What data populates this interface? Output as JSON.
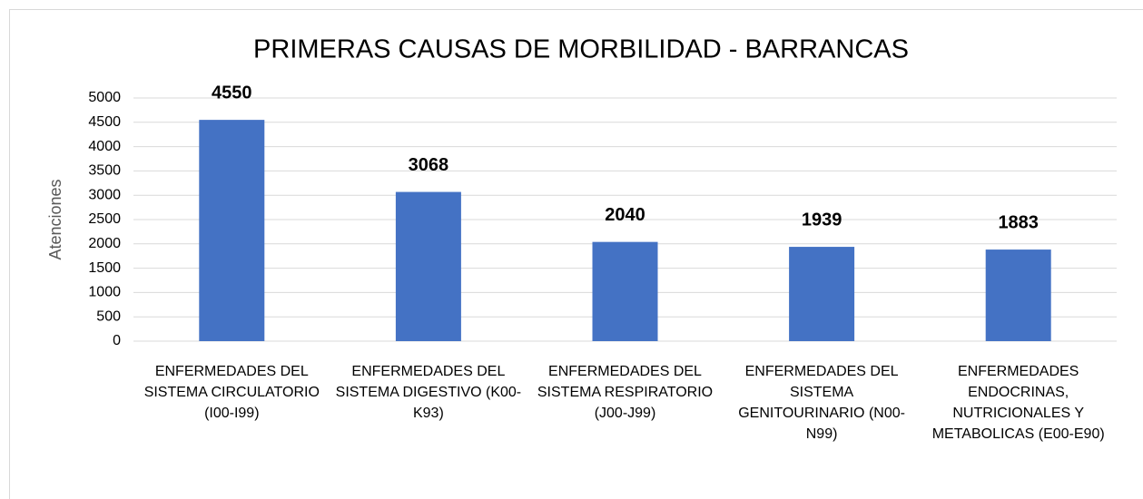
{
  "chart_data": {
    "type": "bar",
    "title": "PRIMERAS CAUSAS DE MORBILIDAD - BARRANCAS",
    "y_label": "Atenciones",
    "categories": [
      "ENFERMEDADES DEL SISTEMA CIRCULATORIO (I00-I99)",
      "ENFERMEDADES DEL SISTEMA DIGESTIVO (K00-K93)",
      "ENFERMEDADES DEL SISTEMA RESPIRATORIO (J00-J99)",
      "ENFERMEDADES DEL SISTEMA GENITOURINARIO (N00-N99)",
      "ENFERMEDADES ENDOCRINAS, NUTRICIONALES Y METABOLICAS (E00-E90)"
    ],
    "values": [
      4550,
      3068,
      2040,
      1939,
      1883
    ],
    "color": "#4472c4",
    "ylim": [
      0,
      5000
    ],
    "yticks": [
      0,
      500,
      1000,
      1500,
      2000,
      2500,
      3000,
      3500,
      4000,
      4500,
      5000
    ],
    "grid": true
  }
}
